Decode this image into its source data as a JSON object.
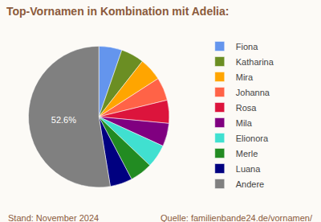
{
  "chart_data": {
    "type": "pie",
    "title": "Top-Vornamen in Kombination mit Adelia:",
    "categories": [
      "Fiona",
      "Katharina",
      "Mira",
      "Johanna",
      "Rosa",
      "Mila",
      "Elionora",
      "Merle",
      "Luana",
      "Andere"
    ],
    "values": [
      5.3,
      5.3,
      5.3,
      5.3,
      5.3,
      5.3,
      5.3,
      5.2,
      5.1,
      52.6
    ],
    "value_labels": [
      null,
      null,
      null,
      null,
      null,
      null,
      null,
      null,
      null,
      "52.6%"
    ],
    "colors": [
      "#6495ed",
      "#6b8e23",
      "#ffa500",
      "#ff6347",
      "#dc143c",
      "#800080",
      "#40e0d0",
      "#228b22",
      "#000080",
      "#808080"
    ],
    "legend": "right",
    "annotations": [
      "Stand: November 2024",
      "Quelle: familienbande24.de/vornamen/"
    ]
  }
}
